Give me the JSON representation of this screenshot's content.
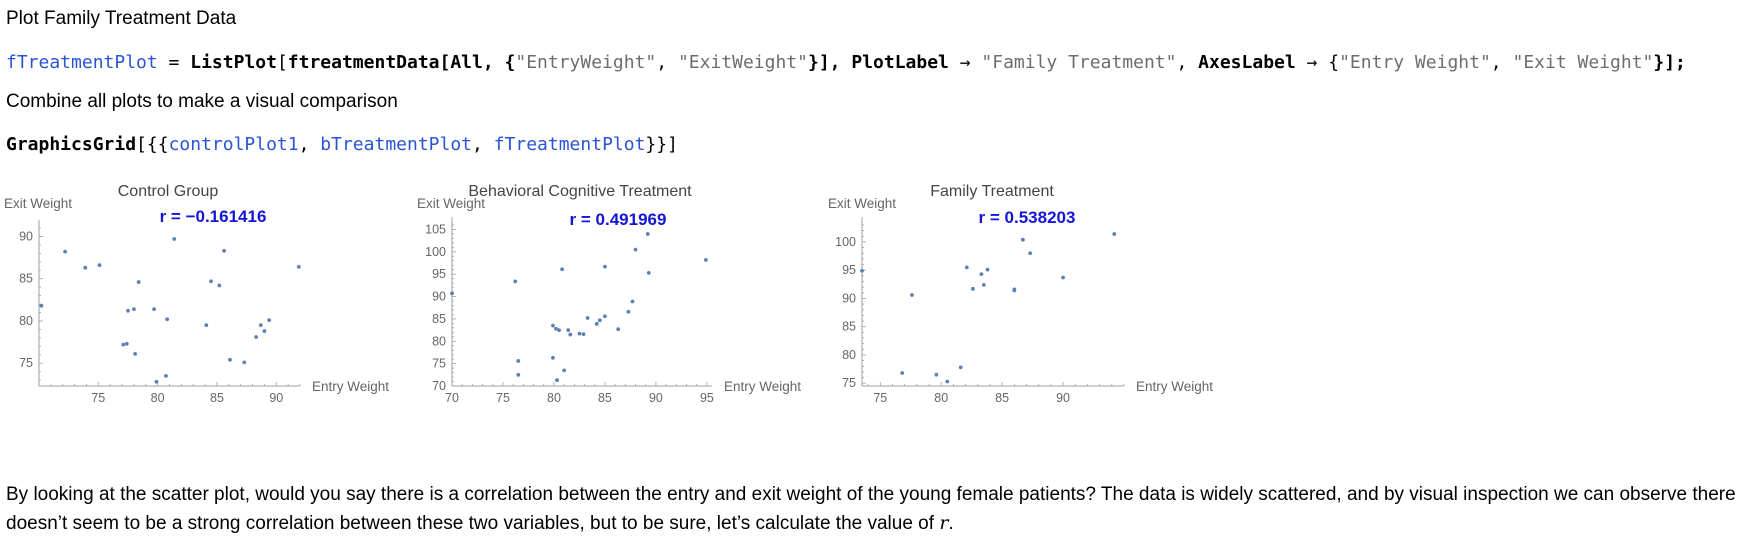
{
  "heading_plot_family": "Plot Family Treatment Data",
  "code_line1": {
    "lhs": "fTreatmentPlot",
    "eq": " = ",
    "fn1": "ListPlot",
    "open": "[",
    "arg1": "ftreatmentData[All, {",
    "s1": "\"EntryWeight\"",
    "comma1": ", ",
    "s2": "\"ExitWeight\"",
    "close1": "}], ",
    "opt1": "PlotLabel",
    "arrow1": " → ",
    "s3": "\"Family Treatment\"",
    "comma2": ", ",
    "opt2": "AxesLabel",
    "arrow2": " → {",
    "s4": "\"Entry Weight\"",
    "comma3": ", ",
    "s5": "\"Exit Weight\"",
    "close2": "}];"
  },
  "heading_combine": "Combine all plots to make a visual comparison",
  "code_line2": {
    "fn": "GraphicsGrid",
    "open": "[{{",
    "a1": "controlPlot1",
    "c1": ", ",
    "a2": "bTreatmentPlot",
    "c2": ", ",
    "a3": "fTreatmentPlot",
    "close": "}}]"
  },
  "paragraph_part1": "By looking at the scatter plot, would you say there is a correlation between the entry and exit weight of the young female patients? The data is widely scattered, and by visual inspection we can observe there doesn’t seem to be a strong correlation between these two variables, but to be sure, let’s calculate the value of ",
  "paragraph_symbol": "r",
  "paragraph_end": ".",
  "colors": {
    "point": "#5E81B5",
    "axis": "#9E9E9E",
    "r_label": "#1515D6",
    "code_def": "#2A53D8",
    "code_str": "#6D6D6D"
  },
  "chart_data": [
    {
      "type": "scatter",
      "title": "Control Group",
      "xlabel": "Entry Weight",
      "ylabel": "Exit Weight",
      "annotation": "r = −0.161416",
      "xlim": [
        70,
        92
      ],
      "ylim": [
        72.3,
        91
      ],
      "xticks": [
        75,
        80,
        85,
        90
      ],
      "yticks": [
        75,
        80,
        85,
        90
      ],
      "points": [
        [
          70.2,
          81.8
        ],
        [
          72.2,
          88.2
        ],
        [
          73.9,
          86.3
        ],
        [
          75.1,
          86.6
        ],
        [
          77.1,
          77.2
        ],
        [
          77.4,
          77.3
        ],
        [
          77.5,
          81.2
        ],
        [
          78.0,
          81.4
        ],
        [
          78.1,
          76.1
        ],
        [
          78.4,
          84.6
        ],
        [
          79.7,
          81.4
        ],
        [
          79.9,
          72.8
        ],
        [
          80.7,
          73.5
        ],
        [
          80.8,
          80.2
        ],
        [
          81.4,
          89.7
        ],
        [
          84.1,
          79.5
        ],
        [
          84.5,
          84.7
        ],
        [
          85.2,
          84.2
        ],
        [
          85.6,
          88.3
        ],
        [
          86.1,
          75.4
        ],
        [
          87.3,
          75.1
        ],
        [
          88.3,
          78.1
        ],
        [
          88.7,
          79.5
        ],
        [
          89.0,
          78.8
        ],
        [
          89.4,
          80.1
        ],
        [
          91.9,
          86.4
        ]
      ]
    },
    {
      "type": "scatter",
      "title": "Behavioral Cognitive Treatment",
      "xlabel": "Entry Weight",
      "ylabel": "Exit Weight",
      "annotation": "r = 0.491969",
      "xlim": [
        70,
        95.5
      ],
      "ylim": [
        70,
        106
      ],
      "xticks": [
        70,
        75,
        80,
        85,
        90,
        95
      ],
      "yticks": [
        70,
        75,
        80,
        85,
        90,
        95,
        100,
        105
      ],
      "points": [
        [
          70.0,
          90.7
        ],
        [
          76.2,
          93.4
        ],
        [
          76.5,
          75.6
        ],
        [
          76.5,
          72.5
        ],
        [
          79.9,
          83.5
        ],
        [
          79.9,
          76.3
        ],
        [
          80.2,
          82.8
        ],
        [
          80.3,
          71.3
        ],
        [
          80.5,
          82.5
        ],
        [
          80.8,
          96.1
        ],
        [
          81.0,
          73.5
        ],
        [
          81.4,
          82.5
        ],
        [
          81.6,
          81.5
        ],
        [
          82.5,
          81.7
        ],
        [
          82.9,
          81.6
        ],
        [
          83.3,
          85.2
        ],
        [
          84.2,
          83.9
        ],
        [
          84.5,
          84.7
        ],
        [
          85.0,
          85.6
        ],
        [
          85.0,
          96.7
        ],
        [
          86.3,
          82.7
        ],
        [
          87.3,
          86.6
        ],
        [
          87.7,
          88.9
        ],
        [
          88.0,
          100.5
        ],
        [
          89.2,
          104.0
        ],
        [
          89.3,
          95.3
        ],
        [
          94.9,
          98.2
        ]
      ]
    },
    {
      "type": "scatter",
      "title": "Family Treatment",
      "xlabel": "Entry Weight",
      "ylabel": "Exit Weight",
      "annotation": "r = 0.538203",
      "xlim": [
        73.5,
        95
      ],
      "ylim": [
        74.5,
        103
      ],
      "xticks": [
        75,
        80,
        85,
        90
      ],
      "yticks": [
        75,
        80,
        85,
        90,
        95,
        100
      ],
      "points": [
        [
          73.5,
          94.9
        ],
        [
          76.8,
          76.8
        ],
        [
          77.6,
          90.6
        ],
        [
          79.6,
          76.5
        ],
        [
          80.5,
          75.3
        ],
        [
          81.6,
          77.8
        ],
        [
          82.1,
          95.5
        ],
        [
          82.6,
          91.7
        ],
        [
          83.3,
          94.3
        ],
        [
          83.5,
          92.4
        ],
        [
          83.8,
          95.1
        ],
        [
          86.0,
          91.4
        ],
        [
          86.0,
          91.6
        ],
        [
          86.7,
          100.4
        ],
        [
          87.3,
          98.0
        ],
        [
          90.0,
          93.7
        ],
        [
          94.2,
          101.4
        ]
      ]
    }
  ]
}
